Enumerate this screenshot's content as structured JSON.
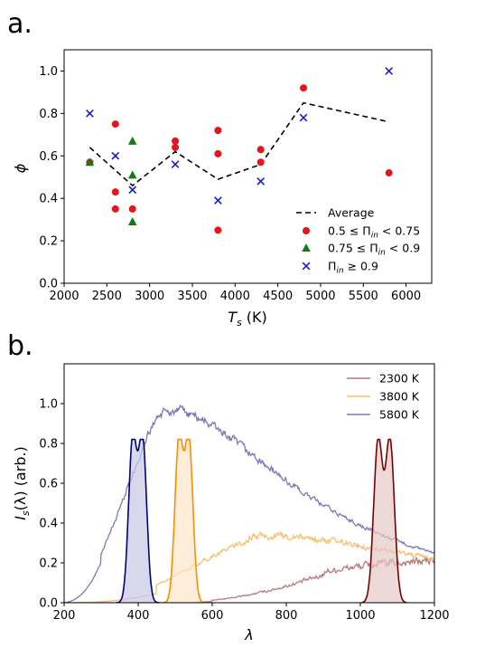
{
  "chart_data": [
    {
      "panel_label": "a.",
      "type": "scatter",
      "xlabel": "T",
      "xlabel_sub": "s",
      "xlabel_unit": " (K)",
      "ylabel": "ϕ",
      "xlim": [
        2000,
        6300
      ],
      "ylim": [
        0.0,
        1.1
      ],
      "xticks": [
        "2000",
        "2500",
        "3000",
        "3500",
        "4000",
        "4500",
        "5000",
        "5500",
        "6000"
      ],
      "yticks": [
        "0.0",
        "0.2",
        "0.4",
        "0.6",
        "0.8",
        "1.0"
      ],
      "grid": false,
      "legend_position": "lower-right",
      "legend": [
        {
          "label": "Average",
          "series": "average"
        },
        {
          "label": "0.5 ≤ Π",
          "sub": "in",
          "tail": " < 0.75",
          "series": "pi_low"
        },
        {
          "label": "0.75 ≤ Π",
          "sub": "in",
          "tail": " < 0.9",
          "series": "pi_mid"
        },
        {
          "label": "Π",
          "sub": "in",
          "tail": " ≥ 0.9",
          "series": "pi_high"
        }
      ],
      "series": [
        {
          "id": "average",
          "kind": "line",
          "style": "dashed",
          "color": "#000000",
          "x": [
            2300,
            2800,
            3300,
            3800,
            4300,
            4800,
            5800
          ],
          "y": [
            0.64,
            0.46,
            0.62,
            0.49,
            0.56,
            0.85,
            0.76
          ]
        },
        {
          "id": "pi_low",
          "kind": "marker",
          "marker": "circle",
          "color": "#e8141a",
          "x": [
            2300,
            2600,
            2600,
            2600,
            2800,
            3300,
            3300,
            3800,
            3800,
            3800,
            4300,
            4300,
            4800,
            5800
          ],
          "y": [
            0.57,
            0.75,
            0.43,
            0.35,
            0.35,
            0.67,
            0.64,
            0.72,
            0.61,
            0.25,
            0.63,
            0.57,
            0.92,
            0.52
          ]
        },
        {
          "id": "pi_mid",
          "kind": "marker",
          "marker": "triangle",
          "color": "#147a14",
          "x": [
            2300,
            2800,
            2800,
            2800
          ],
          "y": [
            0.57,
            0.67,
            0.51,
            0.29
          ]
        },
        {
          "id": "pi_high",
          "kind": "marker",
          "marker": "x",
          "color": "#1a1adc",
          "x": [
            2300,
            2600,
            2800,
            3300,
            3800,
            4300,
            4800,
            5800
          ],
          "y": [
            0.8,
            0.6,
            0.44,
            0.56,
            0.39,
            0.48,
            0.78,
            1.0
          ]
        }
      ]
    },
    {
      "panel_label": "b.",
      "type": "line",
      "xlabel": "λ",
      "ylabel": "I",
      "ylabel_sub": "s",
      "ylabel_tail": "(λ) (arb.)",
      "xlim": [
        200,
        1200
      ],
      "ylim": [
        0.0,
        1.2
      ],
      "xticks": [
        "200",
        "400",
        "600",
        "800",
        "1000",
        "1200"
      ],
      "yticks": [
        "0.0",
        "0.2",
        "0.4",
        "0.6",
        "0.8",
        "1.0"
      ],
      "grid": false,
      "legend_position": "top-right",
      "legend": [
        {
          "label": "2300 K",
          "color": "#b87b7d"
        },
        {
          "label": "3800 K",
          "color": "#fcbd68"
        },
        {
          "label": "5800 K",
          "color": "#7b79b9"
        }
      ],
      "spectra": [
        {
          "name": "2300 K",
          "color": "#b87b7d",
          "T": 2300
        },
        {
          "name": "3800 K",
          "color": "#fcbd68",
          "T": 3800
        },
        {
          "name": "5800 K",
          "color": "#7b79b9",
          "T": 5800
        }
      ],
      "absorbers": [
        {
          "color": "#000080",
          "fill": "#c8c8e6",
          "peaks": [
            385,
            412
          ],
          "height": 0.81,
          "width": 11
        },
        {
          "color": "#ff8c00",
          "fill": "#fde6c9",
          "peaks": [
            510,
            537
          ],
          "height": 0.81,
          "width": 11
        },
        {
          "color": "#7a0000",
          "fill": "#e6c8c8",
          "peaks": [
            1048,
            1080
          ],
          "height": 0.81,
          "width": 12
        }
      ]
    }
  ]
}
